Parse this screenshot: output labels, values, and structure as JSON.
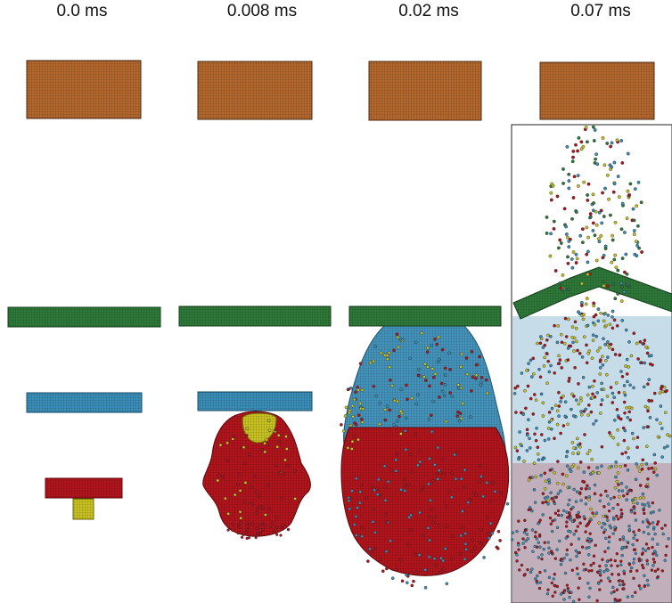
{
  "time_labels": [
    "0.0 ms",
    "0.008 ms",
    "0.02 ms",
    "0.07 ms"
  ],
  "colors": {
    "projectile": "#b5692f",
    "plate_green": "#2f7a3b",
    "plate_blue": "#3b8fb8",
    "target_red": "#b3151d",
    "core_yellow": "#c9c324",
    "edge_dark": "#1f1f1f"
  }
}
